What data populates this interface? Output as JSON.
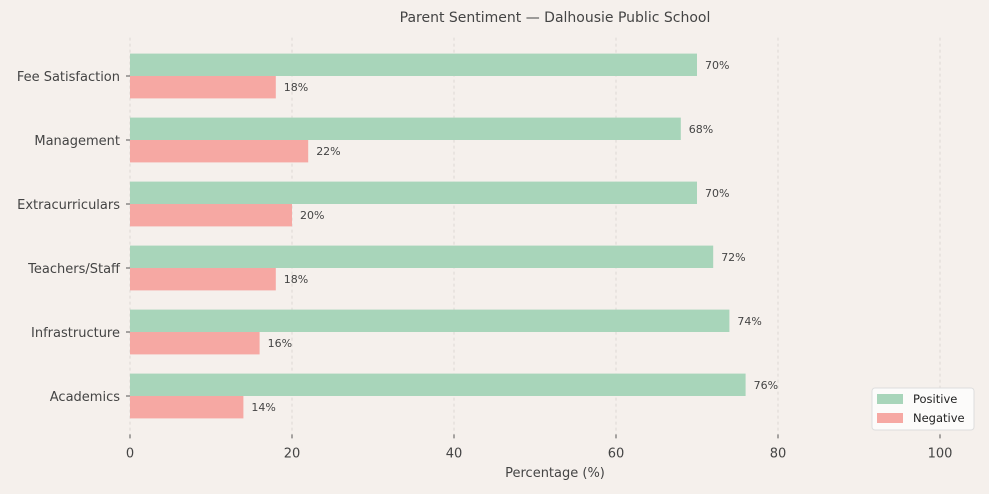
{
  "chart_data": {
    "type": "bar",
    "orientation": "horizontal",
    "title": "Parent Sentiment — Dalhousie Public School",
    "xlabel": "Percentage (%)",
    "ylabel": "",
    "xlim": [
      0,
      105
    ],
    "xticks": [
      0,
      20,
      40,
      60,
      80,
      100
    ],
    "grid": "x, dashed",
    "legend_placement": "lower-right",
    "categories": [
      "Academics",
      "Infrastructure",
      "Teachers/Staff",
      "Extracurriculars",
      "Management",
      "Fee Satisfaction"
    ],
    "series": [
      {
        "name": "Positive",
        "color": "#a8d5ba",
        "values": [
          76,
          74,
          72,
          70,
          68,
          70
        ]
      },
      {
        "name": "Negative",
        "color": "#f6a8a3",
        "values": [
          14,
          16,
          18,
          20,
          22,
          18
        ]
      }
    ],
    "value_label_suffix": "%"
  }
}
